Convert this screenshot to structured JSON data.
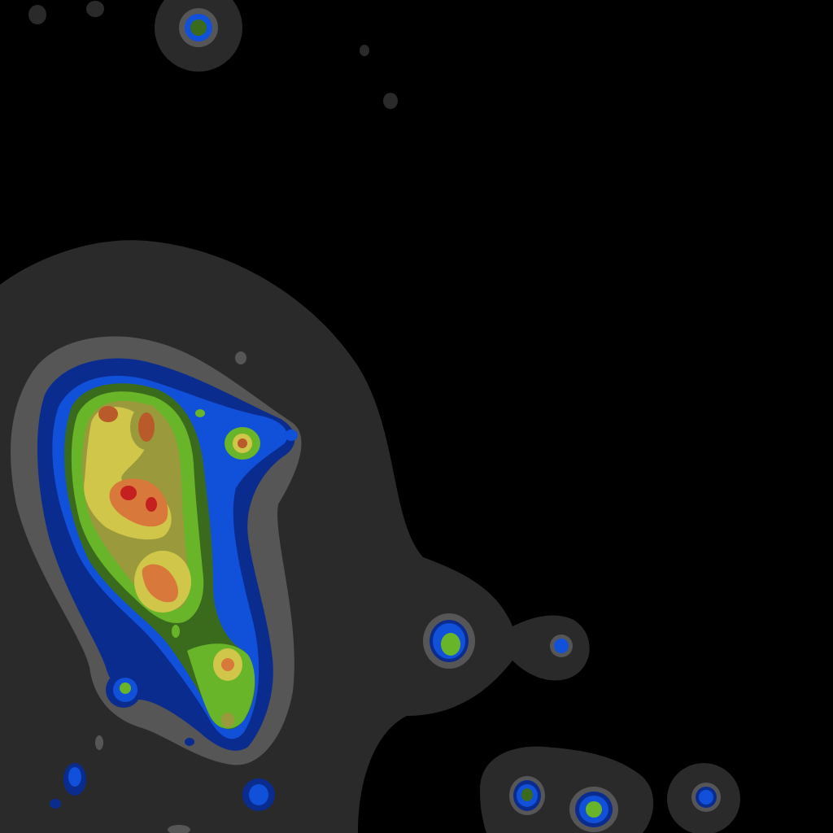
{
  "map": {
    "type": "density-heatmap",
    "background_color": "#000000",
    "band_palette": [
      {
        "name": "dark-gray",
        "color": "#2a2a2a"
      },
      {
        "name": "gray",
        "color": "#565656"
      },
      {
        "name": "navy",
        "color": "#0b2c8f"
      },
      {
        "name": "blue",
        "color": "#1150d8"
      },
      {
        "name": "dark-green",
        "color": "#3a6b1c"
      },
      {
        "name": "green",
        "color": "#68b52a"
      },
      {
        "name": "olive",
        "color": "#9a9a3c"
      },
      {
        "name": "yellow",
        "color": "#cfc64a"
      },
      {
        "name": "orange",
        "color": "#d8783a"
      },
      {
        "name": "brown-red",
        "color": "#b85a2a"
      },
      {
        "name": "red",
        "color": "#c42020"
      }
    ]
  }
}
